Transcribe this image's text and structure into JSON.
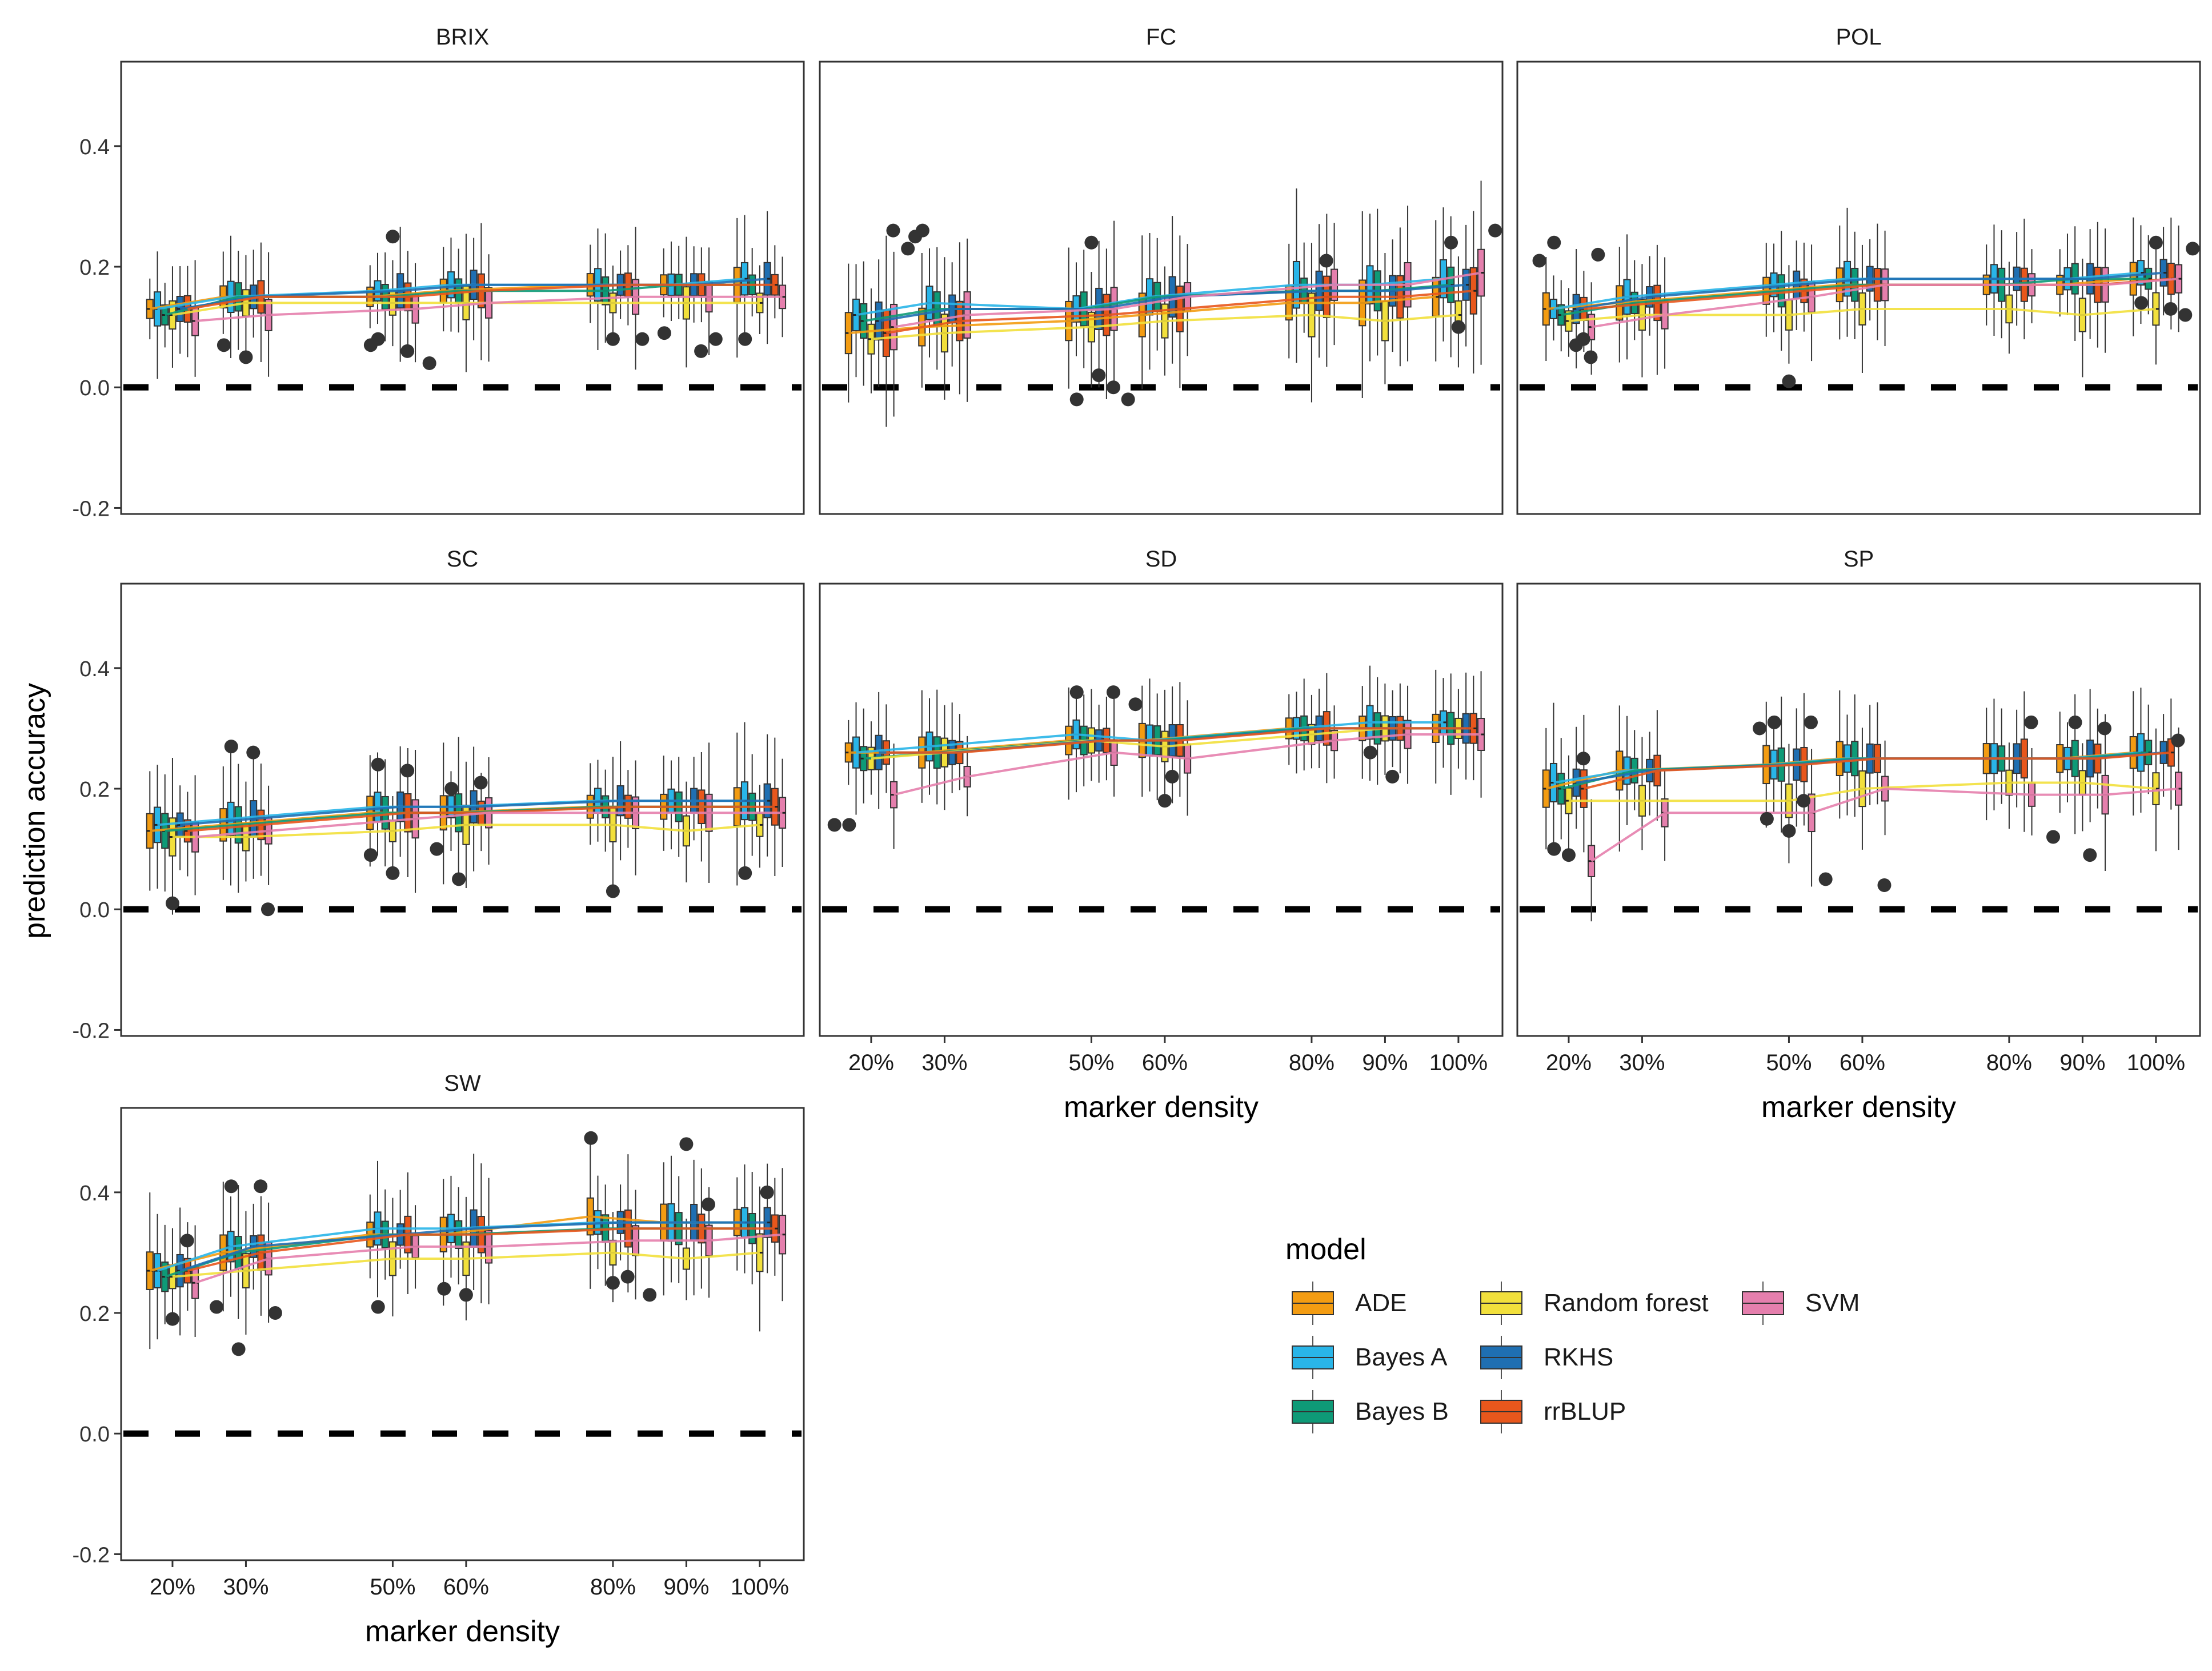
{
  "chart_data": {
    "type": "boxplot",
    "ylabel": "prediction accuracy",
    "xlabel": "marker density",
    "density_labels": [
      "20%",
      "30%",
      "50%",
      "60%",
      "80%",
      "90%",
      "100%"
    ],
    "density_values": [
      20,
      30,
      50,
      60,
      80,
      90,
      100
    ],
    "xlim": [
      13,
      106
    ],
    "ylim": [
      -0.21,
      0.54
    ],
    "yticks": [
      -0.2,
      0.0,
      0.2,
      0.4
    ],
    "ytick_labels": [
      "-0.2",
      "0.0",
      "0.2",
      "0.4"
    ],
    "reference_line": 0.0,
    "legend": {
      "title": "model",
      "items": [
        {
          "name": "ADE",
          "color": "#F39C12"
        },
        {
          "name": "Bayes A",
          "color": "#29B5E8"
        },
        {
          "name": "Bayes B",
          "color": "#0E9A77"
        },
        {
          "name": "Random forest",
          "color": "#F2E03C"
        },
        {
          "name": "RKHS",
          "color": "#1F6FB2"
        },
        {
          "name": "rrBLUP",
          "color": "#E8571C"
        },
        {
          "name": "SVM",
          "color": "#E57FAD"
        }
      ]
    },
    "models": [
      "ADE",
      "Bayes A",
      "Bayes B",
      "Random forest",
      "RKHS",
      "rrBLUP",
      "SVM"
    ],
    "panels": [
      {
        "title": "BRIX",
        "medians": [
          [
            0.13,
            0.15,
            0.15,
            0.16,
            0.17,
            0.17,
            0.17
          ],
          [
            0.13,
            0.15,
            0.16,
            0.17,
            0.17,
            0.17,
            0.18
          ],
          [
            0.12,
            0.15,
            0.15,
            0.16,
            0.16,
            0.17,
            0.17
          ],
          [
            0.12,
            0.14,
            0.14,
            0.14,
            0.14,
            0.14,
            0.14
          ],
          [
            0.13,
            0.15,
            0.16,
            0.17,
            0.17,
            0.17,
            0.18
          ],
          [
            0.13,
            0.15,
            0.15,
            0.16,
            0.17,
            0.17,
            0.17
          ],
          [
            0.11,
            0.12,
            0.13,
            0.14,
            0.15,
            0.15,
            0.15
          ]
        ],
        "iqr": 0.045,
        "outliers": [
          [
            50,
            0.25
          ],
          [
            48,
            0.08
          ],
          [
            52,
            0.06
          ],
          [
            55,
            0.04
          ],
          [
            47,
            0.07
          ],
          [
            80,
            0.08
          ],
          [
            84,
            0.08
          ],
          [
            87,
            0.09
          ],
          [
            92,
            0.06
          ],
          [
            94,
            0.08
          ],
          [
            98,
            0.08
          ],
          [
            30,
            0.05
          ],
          [
            27,
            0.07
          ]
        ]
      },
      {
        "title": "FC",
        "medians": [
          [
            0.09,
            0.1,
            0.11,
            0.12,
            0.14,
            0.14,
            0.15
          ],
          [
            0.12,
            0.14,
            0.13,
            0.15,
            0.17,
            0.17,
            0.18
          ],
          [
            0.11,
            0.13,
            0.13,
            0.15,
            0.16,
            0.16,
            0.17
          ],
          [
            0.08,
            0.09,
            0.1,
            0.11,
            0.12,
            0.11,
            0.12
          ],
          [
            0.11,
            0.13,
            0.13,
            0.15,
            0.16,
            0.16,
            0.17
          ],
          [
            0.09,
            0.11,
            0.12,
            0.13,
            0.15,
            0.15,
            0.16
          ],
          [
            0.1,
            0.12,
            0.13,
            0.15,
            0.17,
            0.17,
            0.19
          ]
        ],
        "iqr": 0.06,
        "outliers": [
          [
            23,
            0.26
          ],
          [
            26,
            0.25
          ],
          [
            27,
            0.26
          ],
          [
            25,
            0.23
          ],
          [
            50,
            0.24
          ],
          [
            48,
            -0.02
          ],
          [
            51,
            0.02
          ],
          [
            55,
            -0.02
          ],
          [
            53,
            0.0
          ],
          [
            82,
            0.21
          ],
          [
            99,
            0.24
          ],
          [
            105,
            0.26
          ],
          [
            100,
            0.1
          ]
        ]
      },
      {
        "title": "POL",
        "medians": [
          [
            0.13,
            0.14,
            0.16,
            0.17,
            0.17,
            0.17,
            0.18
          ],
          [
            0.13,
            0.15,
            0.17,
            0.18,
            0.18,
            0.18,
            0.19
          ],
          [
            0.12,
            0.14,
            0.16,
            0.17,
            0.17,
            0.18,
            0.18
          ],
          [
            0.11,
            0.12,
            0.12,
            0.13,
            0.13,
            0.12,
            0.13
          ],
          [
            0.13,
            0.15,
            0.17,
            0.18,
            0.18,
            0.18,
            0.19
          ],
          [
            0.13,
            0.14,
            0.16,
            0.17,
            0.17,
            0.17,
            0.18
          ],
          [
            0.1,
            0.12,
            0.15,
            0.17,
            0.17,
            0.17,
            0.18
          ]
        ],
        "iqr": 0.045,
        "outliers": [
          [
            16,
            0.21
          ],
          [
            18,
            0.24
          ],
          [
            21,
            0.07
          ],
          [
            22,
            0.08
          ],
          [
            23,
            0.05
          ],
          [
            24,
            0.22
          ],
          [
            50,
            0.01
          ],
          [
            100,
            0.24
          ],
          [
            102,
            0.13
          ],
          [
            104,
            0.12
          ],
          [
            105,
            0.23
          ],
          [
            98,
            0.14
          ]
        ]
      },
      {
        "title": "SC",
        "medians": [
          [
            0.13,
            0.14,
            0.16,
            0.16,
            0.17,
            0.17,
            0.17
          ],
          [
            0.14,
            0.15,
            0.17,
            0.17,
            0.18,
            0.18,
            0.18
          ],
          [
            0.13,
            0.14,
            0.16,
            0.16,
            0.17,
            0.17,
            0.17
          ],
          [
            0.12,
            0.12,
            0.13,
            0.14,
            0.14,
            0.13,
            0.14
          ],
          [
            0.14,
            0.15,
            0.17,
            0.17,
            0.18,
            0.18,
            0.18
          ],
          [
            0.13,
            0.14,
            0.16,
            0.16,
            0.17,
            0.17,
            0.17
          ],
          [
            0.12,
            0.13,
            0.15,
            0.16,
            0.16,
            0.16,
            0.16
          ]
        ],
        "iqr": 0.05,
        "outliers": [
          [
            20,
            0.01
          ],
          [
            28,
            0.27
          ],
          [
            31,
            0.26
          ],
          [
            33,
            0.0
          ],
          [
            48,
            0.24
          ],
          [
            47,
            0.09
          ],
          [
            52,
            0.23
          ],
          [
            50,
            0.06
          ],
          [
            56,
            0.1
          ],
          [
            58,
            0.2
          ],
          [
            59,
            0.05
          ],
          [
            62,
            0.21
          ],
          [
            80,
            0.03
          ],
          [
            98,
            0.06
          ]
        ]
      },
      {
        "title": "SD",
        "medians": [
          [
            0.26,
            0.26,
            0.28,
            0.28,
            0.3,
            0.3,
            0.3
          ],
          [
            0.26,
            0.27,
            0.29,
            0.28,
            0.3,
            0.31,
            0.31
          ],
          [
            0.25,
            0.26,
            0.28,
            0.28,
            0.3,
            0.3,
            0.3
          ],
          [
            0.25,
            0.26,
            0.28,
            0.27,
            0.29,
            0.3,
            0.3
          ],
          [
            0.26,
            0.26,
            0.28,
            0.28,
            0.3,
            0.3,
            0.3
          ],
          [
            0.26,
            0.26,
            0.28,
            0.28,
            0.3,
            0.3,
            0.3
          ],
          [
            0.19,
            0.22,
            0.26,
            0.25,
            0.28,
            0.29,
            0.29
          ]
        ],
        "iqr": 0.045,
        "outliers": [
          [
            15,
            0.14
          ],
          [
            17,
            0.14
          ],
          [
            48,
            0.36
          ],
          [
            53,
            0.36
          ],
          [
            56,
            0.34
          ],
          [
            60,
            0.18
          ],
          [
            61,
            0.22
          ],
          [
            88,
            0.26
          ],
          [
            91,
            0.22
          ]
        ]
      },
      {
        "title": "SP",
        "medians": [
          [
            0.2,
            0.23,
            0.24,
            0.25,
            0.25,
            0.25,
            0.26
          ],
          [
            0.21,
            0.23,
            0.24,
            0.25,
            0.25,
            0.25,
            0.26
          ],
          [
            0.2,
            0.23,
            0.24,
            0.25,
            0.25,
            0.25,
            0.26
          ],
          [
            0.18,
            0.18,
            0.18,
            0.2,
            0.21,
            0.21,
            0.2
          ],
          [
            0.21,
            0.23,
            0.24,
            0.25,
            0.25,
            0.25,
            0.26
          ],
          [
            0.2,
            0.23,
            0.24,
            0.25,
            0.25,
            0.25,
            0.26
          ],
          [
            0.08,
            0.16,
            0.16,
            0.2,
            0.19,
            0.19,
            0.2
          ]
        ],
        "iqr": 0.05,
        "outliers": [
          [
            18,
            0.1
          ],
          [
            20,
            0.09
          ],
          [
            22,
            0.25
          ],
          [
            46,
            0.3
          ],
          [
            48,
            0.31
          ],
          [
            47,
            0.15
          ],
          [
            50,
            0.13
          ],
          [
            52,
            0.18
          ],
          [
            55,
            0.05
          ],
          [
            53,
            0.31
          ],
          [
            63,
            0.04
          ],
          [
            83,
            0.31
          ],
          [
            86,
            0.12
          ],
          [
            89,
            0.31
          ],
          [
            91,
            0.09
          ],
          [
            93,
            0.3
          ],
          [
            103,
            0.28
          ]
        ]
      },
      {
        "title": "SW",
        "medians": [
          [
            0.27,
            0.3,
            0.33,
            0.33,
            0.36,
            0.35,
            0.35
          ],
          [
            0.27,
            0.31,
            0.34,
            0.34,
            0.35,
            0.35,
            0.35
          ],
          [
            0.26,
            0.3,
            0.33,
            0.33,
            0.34,
            0.34,
            0.34
          ],
          [
            0.26,
            0.27,
            0.29,
            0.29,
            0.3,
            0.29,
            0.3
          ],
          [
            0.27,
            0.31,
            0.33,
            0.34,
            0.35,
            0.35,
            0.35
          ],
          [
            0.27,
            0.3,
            0.33,
            0.33,
            0.34,
            0.34,
            0.34
          ],
          [
            0.25,
            0.29,
            0.31,
            0.31,
            0.32,
            0.32,
            0.33
          ]
        ],
        "iqr": 0.05,
        "outliers": [
          [
            20,
            0.19
          ],
          [
            22,
            0.32
          ],
          [
            26,
            0.21
          ],
          [
            28,
            0.41
          ],
          [
            29,
            0.14
          ],
          [
            32,
            0.41
          ],
          [
            34,
            0.2
          ],
          [
            48,
            0.21
          ],
          [
            57,
            0.24
          ],
          [
            60,
            0.23
          ],
          [
            77,
            0.49
          ],
          [
            80,
            0.25
          ],
          [
            82,
            0.26
          ],
          [
            85,
            0.23
          ],
          [
            90,
            0.48
          ],
          [
            93,
            0.38
          ],
          [
            101,
            0.4
          ]
        ]
      }
    ]
  }
}
